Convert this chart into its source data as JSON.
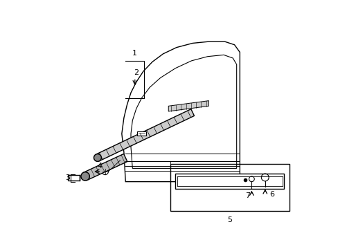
{
  "bg_color": "#ffffff",
  "lc": "#000000",
  "lw": 1.0,
  "figsize": [
    4.89,
    3.6
  ],
  "dpi": 100,
  "label_fs": 8,
  "label_color": "#000000"
}
